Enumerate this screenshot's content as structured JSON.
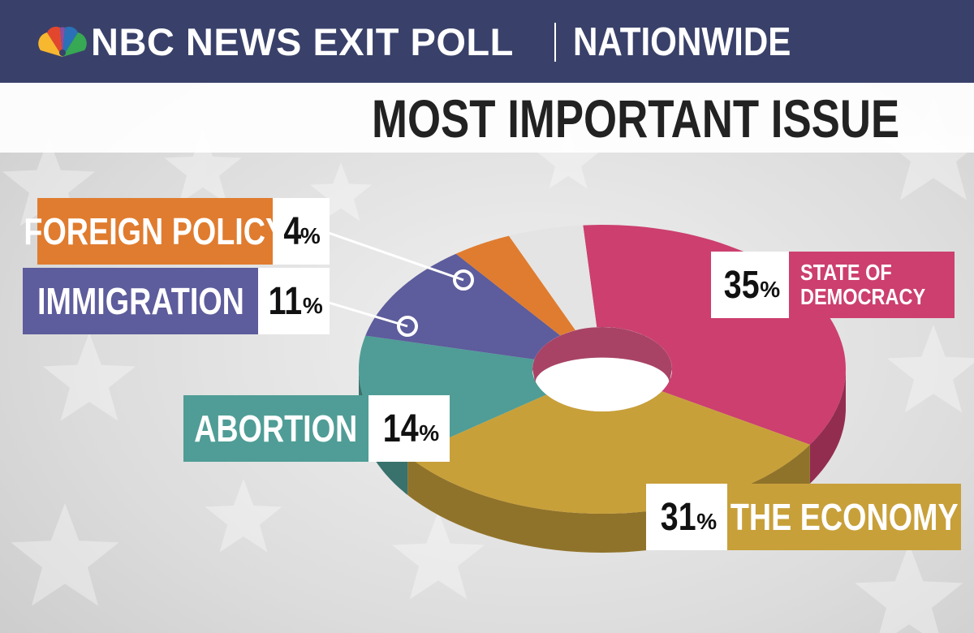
{
  "header": {
    "network": "NBC NEWS EXIT POLL",
    "region": "NATIONWIDE"
  },
  "colors": {
    "header_bg": "#39416a",
    "democracy": "#cc3f6f",
    "economy": "#c8a03a",
    "abortion": "#4f9d96",
    "immigration": "#5d5c9c",
    "foreign_policy": "#e07c2f",
    "other": "#e4e4e4"
  },
  "chart_data": {
    "type": "pie",
    "title": "MOST IMPORTANT ISSUE",
    "style": "3d-donut",
    "unit": "%",
    "slices": [
      {
        "key": "democracy",
        "label": "STATE OF DEMOCRACY",
        "label_lines": [
          "STATE OF",
          "DEMOCRACY"
        ],
        "value": 35,
        "display": "35"
      },
      {
        "key": "economy",
        "label": "THE ECONOMY",
        "value": 31,
        "display": "31"
      },
      {
        "key": "abortion",
        "label": "ABORTION",
        "value": 14,
        "display": "14"
      },
      {
        "key": "immigration",
        "label": "IMMIGRATION",
        "value": 11,
        "display": "11"
      },
      {
        "key": "foreign_policy",
        "label": "FOREIGN POLICY",
        "value": 4,
        "display": "4"
      },
      {
        "key": "other",
        "label": "",
        "value": 5,
        "display": ""
      }
    ]
  }
}
